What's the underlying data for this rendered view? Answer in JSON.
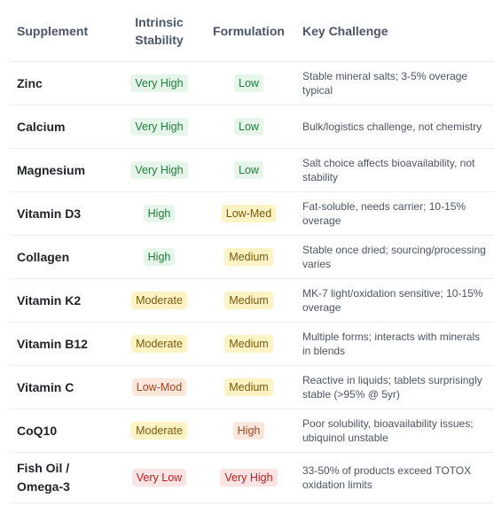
{
  "headers": {
    "supplement": "Supplement",
    "stability": "Intrinsic Stability",
    "formulation": "Formulation",
    "challenge": "Key Challenge"
  },
  "colors": {
    "green_bg": "#e6f6ea",
    "green_text": "#227a3b",
    "yellow_bg": "#fdf3c4",
    "yellow_text": "#7a5a0a",
    "orange_bg": "#fbe7dc",
    "orange_text": "#a3451d",
    "red_bg": "#fde4e4",
    "red_text": "#b42323"
  },
  "rows": [
    {
      "name": "Zinc",
      "stability": "Very High",
      "stability_tone": "green",
      "formulation": "Low",
      "formulation_tone": "green",
      "challenge": "Stable mineral salts; 3-5% overage typical"
    },
    {
      "name": "Calcium",
      "stability": "Very High",
      "stability_tone": "green",
      "formulation": "Low",
      "formulation_tone": "green",
      "challenge": "Bulk/logistics challenge, not chemistry"
    },
    {
      "name": "Magnesium",
      "stability": "Very High",
      "stability_tone": "green",
      "formulation": "Low",
      "formulation_tone": "green",
      "challenge": "Salt choice affects bioavailability, not stability"
    },
    {
      "name": "Vitamin D3",
      "stability": "High",
      "stability_tone": "green",
      "formulation": "Low-Med",
      "formulation_tone": "yellow",
      "challenge": "Fat-soluble, needs carrier; 10-15% overage"
    },
    {
      "name": "Collagen",
      "stability": "High",
      "stability_tone": "green",
      "formulation": "Medium",
      "formulation_tone": "yellow",
      "challenge": "Stable once dried; sourcing/processing varies"
    },
    {
      "name": "Vitamin K2",
      "stability": "Moderate",
      "stability_tone": "yellow",
      "formulation": "Medium",
      "formulation_tone": "yellow",
      "challenge": "MK-7 light/oxidation sensitive; 10-15% overage"
    },
    {
      "name": "Vitamin B12",
      "stability": "Moderate",
      "stability_tone": "yellow",
      "formulation": "Medium",
      "formulation_tone": "yellow",
      "challenge": "Multiple forms; interacts with minerals in blends"
    },
    {
      "name": "Vitamin C",
      "stability": "Low-Mod",
      "stability_tone": "orange",
      "formulation": "Medium",
      "formulation_tone": "yellow",
      "challenge": "Reactive in liquids; tablets surprisingly stable (>95% @ 5yr)"
    },
    {
      "name": "CoQ10",
      "stability": "Moderate",
      "stability_tone": "yellow",
      "formulation": "High",
      "formulation_tone": "orange",
      "challenge": "Poor solubility, bioavailability issues; ubiquinol unstable"
    },
    {
      "name": "Fish Oil / Omega-3",
      "stability": "Very Low",
      "stability_tone": "red",
      "formulation": "Very High",
      "formulation_tone": "red",
      "challenge": "33-50% of products exceed TOTOX oxidation limits"
    }
  ]
}
